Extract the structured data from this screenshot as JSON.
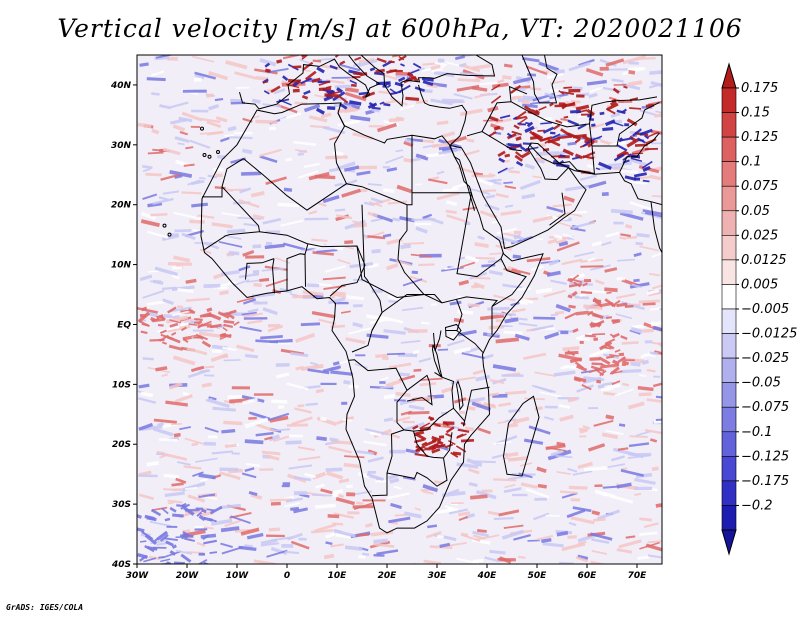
{
  "title": "Vertical velocity [m/s] at 600hPa, VT: 2020021106",
  "footer": "GrADS: IGES/COLA",
  "map": {
    "projection": "latlon",
    "lon_range": [
      -30,
      75
    ],
    "lat_range": [
      -40,
      45
    ],
    "x_ticks": [
      {
        "lon": -30,
        "label": "30W"
      },
      {
        "lon": -20,
        "label": "20W"
      },
      {
        "lon": -10,
        "label": "10W"
      },
      {
        "lon": 0,
        "label": "0"
      },
      {
        "lon": 10,
        "label": "10E"
      },
      {
        "lon": 20,
        "label": "20E"
      },
      {
        "lon": 30,
        "label": "30E"
      },
      {
        "lon": 40,
        "label": "40E"
      },
      {
        "lon": 50,
        "label": "50E"
      },
      {
        "lon": 60,
        "label": "60E"
      },
      {
        "lon": 70,
        "label": "70E"
      }
    ],
    "y_ticks": [
      {
        "lat": 40,
        "label": "40N"
      },
      {
        "lat": 30,
        "label": "30N"
      },
      {
        "lat": 20,
        "label": "20N"
      },
      {
        "lat": 10,
        "label": "10N"
      },
      {
        "lat": 0,
        "label": "EQ"
      },
      {
        "lat": -10,
        "label": "10S"
      },
      {
        "lat": -20,
        "label": "20S"
      },
      {
        "lat": -30,
        "label": "30S"
      },
      {
        "lat": -40,
        "label": "40S"
      }
    ],
    "field_colors": {
      "strong_up": "#b01818",
      "up": "#e06a6a",
      "weak_up": "#f4c6c6",
      "neutral": "#ffffff",
      "weak_down": "#c8c8f4",
      "down": "#7878e0",
      "strong_down": "#2222b0"
    }
  },
  "colorbar": {
    "top_color": "#b51c1c",
    "bottom_color": "#14149a",
    "colors": [
      "#c42a2a",
      "#d24444",
      "#dd6161",
      "#e47c7c",
      "#ea9898",
      "#efb2b2",
      "#f4cccc",
      "#f9e4e4",
      "#ffffff",
      "#e4e4fa",
      "#cacaf4",
      "#b0b0ee",
      "#9696e8",
      "#7c7ce2",
      "#6262da",
      "#4848d2",
      "#3030c4",
      "#1c1cb0"
    ],
    "labels": [
      "0.175",
      "0.15",
      "0.125",
      "0.1",
      "0.075",
      "0.05",
      "0.025",
      "0.0125",
      "0.005",
      "−0.005",
      "−0.0125",
      "−0.025",
      "−0.05",
      "−0.075",
      "−0.1",
      "−0.125",
      "−0.175",
      "−0.2"
    ]
  }
}
